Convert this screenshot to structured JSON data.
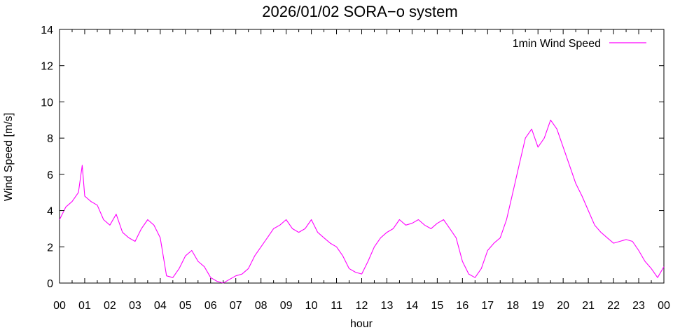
{
  "chart_data": {
    "type": "line",
    "title": "2026/01/02 SORA−o system",
    "xlabel": "hour",
    "ylabel": "Wind Speed [m/s]",
    "ylim": [
      0,
      14
    ],
    "xlim": [
      0,
      24
    ],
    "yticks": [
      "0",
      "2",
      "4",
      "6",
      "8",
      "10",
      "12",
      "14"
    ],
    "xticks": [
      "00",
      "01",
      "02",
      "03",
      "04",
      "05",
      "06",
      "07",
      "08",
      "09",
      "10",
      "11",
      "12",
      "13",
      "14",
      "15",
      "16",
      "17",
      "18",
      "19",
      "20",
      "21",
      "22",
      "23",
      "00"
    ],
    "grid": false,
    "legend_position": "top-right",
    "series": [
      {
        "name": "1min Wind Speed",
        "color": "#ff00ff",
        "x": [
          0,
          0.25,
          0.5,
          0.75,
          0.9,
          1.0,
          1.25,
          1.5,
          1.75,
          2.0,
          2.25,
          2.5,
          2.75,
          3.0,
          3.25,
          3.5,
          3.75,
          4.0,
          4.25,
          4.5,
          4.75,
          5.0,
          5.25,
          5.5,
          5.75,
          6.0,
          6.25,
          6.5,
          6.75,
          7.0,
          7.25,
          7.5,
          7.75,
          8.0,
          8.25,
          8.5,
          8.75,
          9.0,
          9.25,
          9.5,
          9.75,
          10.0,
          10.25,
          10.5,
          10.75,
          11.0,
          11.25,
          11.5,
          11.75,
          12.0,
          12.25,
          12.5,
          12.75,
          13.0,
          13.25,
          13.5,
          13.75,
          14.0,
          14.25,
          14.5,
          14.75,
          15.0,
          15.25,
          15.5,
          15.75,
          16.0,
          16.25,
          16.5,
          16.75,
          17.0,
          17.25,
          17.5,
          17.75,
          18.0,
          18.25,
          18.5,
          18.75,
          19.0,
          19.25,
          19.5,
          19.75,
          20.0,
          20.25,
          20.5,
          20.75,
          21.0,
          21.25,
          21.5,
          21.75,
          22.0,
          22.25,
          22.5,
          22.75,
          23.0,
          23.25,
          23.5,
          23.75,
          24.0
        ],
        "values": [
          3.5,
          4.2,
          4.5,
          5.0,
          6.5,
          4.8,
          4.5,
          4.3,
          3.5,
          3.2,
          3.8,
          2.8,
          2.5,
          2.3,
          3.0,
          3.5,
          3.2,
          2.5,
          0.4,
          0.3,
          0.8,
          1.5,
          1.8,
          1.2,
          0.9,
          0.3,
          0.1,
          0.0,
          0.2,
          0.4,
          0.5,
          0.8,
          1.5,
          2.0,
          2.5,
          3.0,
          3.2,
          3.5,
          3.0,
          2.8,
          3.0,
          3.5,
          2.8,
          2.5,
          2.2,
          2.0,
          1.5,
          0.8,
          0.6,
          0.5,
          1.2,
          2.0,
          2.5,
          2.8,
          3.0,
          3.5,
          3.2,
          3.3,
          3.5,
          3.2,
          3.0,
          3.3,
          3.5,
          3.0,
          2.5,
          1.2,
          0.5,
          0.3,
          0.8,
          1.8,
          2.2,
          2.5,
          3.5,
          5.0,
          6.5,
          8.0,
          8.5,
          7.5,
          8.0,
          9.0,
          8.5,
          7.5,
          6.5,
          5.5,
          4.8,
          4.0,
          3.2,
          2.8,
          2.5,
          2.2,
          2.3,
          2.4,
          2.3,
          1.8,
          1.2,
          0.8,
          0.3,
          0.9
        ]
      }
    ]
  }
}
